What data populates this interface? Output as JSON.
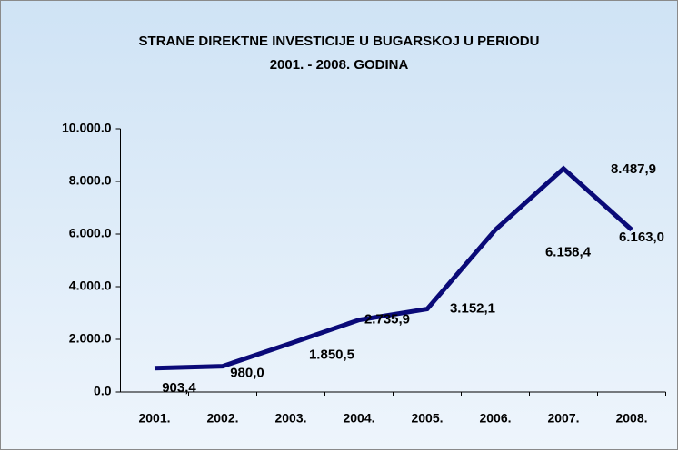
{
  "chart_data": {
    "type": "line",
    "title": [
      "STRANE DIREKTNE INVESTICIJE U BUGARSKOJ U PERIODU",
      "2001. - 2008. GODINA"
    ],
    "categories": [
      "2001.",
      "2002.",
      "2003.",
      "2004.",
      "2005.",
      "2006.",
      "2007.",
      "2008."
    ],
    "values": [
      903.4,
      980.0,
      1850.5,
      2735.9,
      3152.1,
      6158.4,
      8487.9,
      6163.0
    ],
    "value_labels": [
      "903,4",
      "980,0",
      "1.850,5",
      "2.735,9",
      "3.152,1",
      "6.158,4",
      "8.487,9",
      "6.163,0"
    ],
    "color": "#0a0a78",
    "ylim": [
      0,
      10000
    ],
    "yticks": [
      {
        "value": 0,
        "label": "0.0"
      },
      {
        "value": 2000,
        "label": "2.000.0"
      },
      {
        "value": 4000,
        "label": "4.000.0"
      },
      {
        "value": 6000,
        "label": "6.000.0"
      },
      {
        "value": 8000,
        "label": "8.000.0"
      },
      {
        "value": 10000,
        "label": "10.000.0"
      }
    ]
  }
}
